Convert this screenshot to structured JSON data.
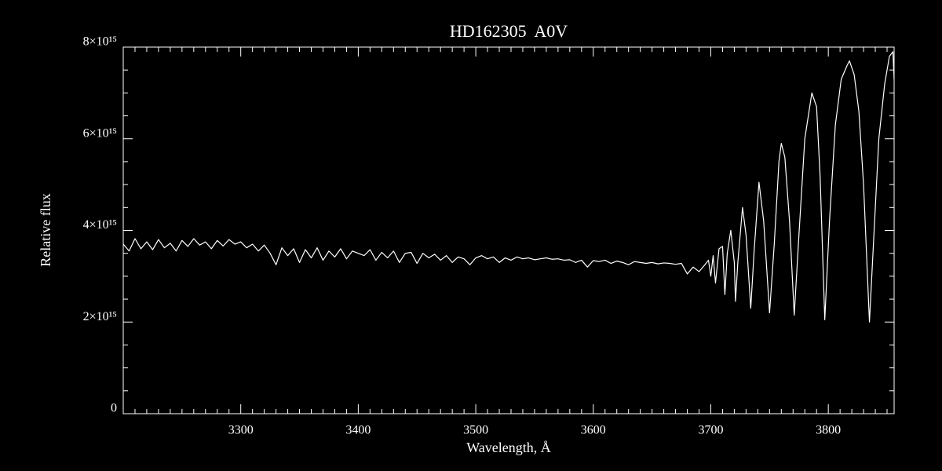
{
  "chart_data": {
    "type": "line",
    "title": "HD162305  A0V",
    "xlabel": "Wavelength, Å",
    "ylabel": "Relative flux",
    "color": "#ffffff",
    "xlim": [
      3200,
      3856
    ],
    "ylim": [
      0,
      8000000000000000.0
    ],
    "xticks": [
      3300,
      3400,
      3500,
      3600,
      3700,
      3800
    ],
    "xminorticks": [
      3210,
      3220,
      3230,
      3240,
      3250,
      3260,
      3270,
      3280,
      3290,
      3310,
      3320,
      3330,
      3340,
      3350,
      3360,
      3370,
      3380,
      3390,
      3410,
      3420,
      3430,
      3440,
      3450,
      3460,
      3470,
      3480,
      3490,
      3510,
      3520,
      3530,
      3540,
      3550,
      3560,
      3570,
      3580,
      3590,
      3610,
      3620,
      3630,
      3640,
      3650,
      3660,
      3670,
      3680,
      3690,
      3710,
      3720,
      3730,
      3740,
      3750,
      3760,
      3770,
      3780,
      3790,
      3810,
      3820,
      3830,
      3840,
      3850
    ],
    "yticks": [
      0,
      {
        "value": 2000000000000000.0,
        "label": "2×10¹⁵"
      },
      {
        "value": 4000000000000000.0,
        "label": "4×10¹⁵"
      },
      {
        "value": 6000000000000000.0,
        "label": "6×10¹⁵"
      },
      {
        "value": 8000000000000000.0,
        "label": "8×10¹⁵"
      }
    ],
    "yminorticks": [
      500000000000000.0,
      1000000000000000.0,
      1500000000000000.0,
      2500000000000000.0,
      3000000000000000.0,
      3500000000000000.0,
      4500000000000000.0,
      5000000000000000.0,
      5500000000000000.0,
      6500000000000000.0,
      7000000000000000.0,
      7500000000000000.0
    ],
    "x": [
      3200,
      3205,
      3210,
      3215,
      3220,
      3225,
      3230,
      3235,
      3240,
      3245,
      3250,
      3255,
      3260,
      3265,
      3270,
      3275,
      3280,
      3285,
      3290,
      3295,
      3300,
      3305,
      3310,
      3315,
      3320,
      3325,
      3330,
      3335,
      3340,
      3345,
      3350,
      3355,
      3360,
      3365,
      3370,
      3375,
      3380,
      3385,
      3390,
      3395,
      3400,
      3405,
      3410,
      3415,
      3420,
      3425,
      3430,
      3435,
      3440,
      3445,
      3450,
      3455,
      3460,
      3465,
      3470,
      3475,
      3480,
      3485,
      3490,
      3495,
      3500,
      3505,
      3510,
      3515,
      3520,
      3525,
      3530,
      3535,
      3540,
      3545,
      3550,
      3555,
      3560,
      3565,
      3570,
      3575,
      3580,
      3585,
      3590,
      3595,
      3600,
      3605,
      3610,
      3615,
      3620,
      3625,
      3630,
      3635,
      3640,
      3645,
      3650,
      3655,
      3660,
      3665,
      3670,
      3675,
      3680,
      3685,
      3690,
      3695,
      3698,
      3700,
      3702,
      3704,
      3707,
      3710,
      3712,
      3714,
      3717,
      3720,
      3721,
      3723,
      3727,
      3730,
      3734,
      3737,
      3741,
      3745,
      3750,
      3754,
      3758,
      3760,
      3763,
      3767,
      3771,
      3775,
      3780,
      3786,
      3790,
      3793,
      3797,
      3801,
      3806,
      3811,
      3816,
      3818,
      3822,
      3826,
      3830,
      3835,
      3839,
      3843,
      3848,
      3852,
      3855,
      3856
    ],
    "values": [
      3700000000000000.0,
      3550000000000000.0,
      3820000000000000.0,
      3600000000000000.0,
      3750000000000000.0,
      3580000000000000.0,
      3800000000000000.0,
      3620000000000000.0,
      3720000000000000.0,
      3550000000000000.0,
      3780000000000000.0,
      3650000000000000.0,
      3820000000000000.0,
      3680000000000000.0,
      3750000000000000.0,
      3600000000000000.0,
      3780000000000000.0,
      3660000000000000.0,
      3800000000000000.0,
      3700000000000000.0,
      3750000000000000.0,
      3620000000000000.0,
      3700000000000000.0,
      3550000000000000.0,
      3680000000000000.0,
      3500000000000000.0,
      3250000000000000.0,
      3620000000000000.0,
      3450000000000000.0,
      3600000000000000.0,
      3300000000000000.0,
      3580000000000000.0,
      3400000000000000.0,
      3620000000000000.0,
      3350000000000000.0,
      3550000000000000.0,
      3420000000000000.0,
      3600000000000000.0,
      3380000000000000.0,
      3550000000000000.0,
      3500000000000000.0,
      3450000000000000.0,
      3580000000000000.0,
      3350000000000000.0,
      3520000000000000.0,
      3400000000000000.0,
      3550000000000000.0,
      3300000000000000.0,
      3500000000000000.0,
      3520000000000000.0,
      3280000000000000.0,
      3500000000000000.0,
      3400000000000000.0,
      3480000000000000.0,
      3350000000000000.0,
      3450000000000000.0,
      3300000000000000.0,
      3420000000000000.0,
      3380000000000000.0,
      3250000000000000.0,
      3400000000000000.0,
      3450000000000000.0,
      3380000000000000.0,
      3420000000000000.0,
      3300000000000000.0,
      3400000000000000.0,
      3350000000000000.0,
      3420000000000000.0,
      3380000000000000.0,
      3400000000000000.0,
      3360000000000000.0,
      3380000000000000.0,
      3400000000000000.0,
      3370000000000000.0,
      3380000000000000.0,
      3350000000000000.0,
      3360000000000000.0,
      3300000000000000.0,
      3350000000000000.0,
      3200000000000000.0,
      3340000000000000.0,
      3320000000000000.0,
      3350000000000000.0,
      3280000000000000.0,
      3330000000000000.0,
      3300000000000000.0,
      3250000000000000.0,
      3320000000000000.0,
      3300000000000000.0,
      3280000000000000.0,
      3300000000000000.0,
      3270000000000000.0,
      3290000000000000.0,
      3280000000000000.0,
      3260000000000000.0,
      3280000000000000.0,
      3050000000000000.0,
      3200000000000000.0,
      3100000000000000.0,
      3250000000000000.0,
      3350000000000000.0,
      3000000000000000.0,
      3450000000000000.0,
      2850000000000000.0,
      3600000000000000.0,
      3650000000000000.0,
      2600000000000000.0,
      3500000000000000.0,
      4000000000000000.0,
      3300000000000000.0,
      2450000000000000.0,
      3300000000000000.0,
      4500000000000000.0,
      3900000000000000.0,
      2300000000000000.0,
      3600000000000000.0,
      5050000000000000.0,
      4200000000000000.0,
      2200000000000000.0,
      3700000000000000.0,
      5500000000000000.0,
      5900000000000000.0,
      5600000000000000.0,
      4200000000000000.0,
      2150000000000000.0,
      3900000000000000.0,
      6000000000000000.0,
      7000000000000000.0,
      6700000000000000.0,
      5200000000000000.0,
      2050000000000000.0,
      4200000000000000.0,
      6300000000000000.0,
      7300000000000000.0,
      7600000000000000.0,
      7700000000000000.0,
      7400000000000000.0,
      6600000000000000.0,
      5000000000000000.0,
      2000000000000000.0,
      4000000000000000.0,
      6000000000000000.0,
      7200000000000000.0,
      7800000000000000.0,
      7900000000000000.0,
      7300000000000000.0
    ]
  }
}
